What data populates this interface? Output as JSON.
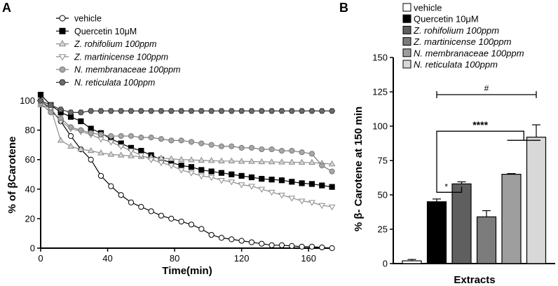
{
  "panels": {
    "a": "A",
    "b": "B"
  },
  "chart_data": [
    {
      "type": "line",
      "xlabel": "Time(min)",
      "ylabel": "% of βCarotene",
      "xlim": [
        0,
        175
      ],
      "ylim": [
        0,
        105
      ],
      "xticks": [
        0,
        40,
        80,
        120,
        160
      ],
      "yticks": [
        0,
        20,
        40,
        60,
        80,
        100
      ],
      "series": [
        {
          "name": "vehicle",
          "marker": "circle-open",
          "color": "#000000",
          "fill": "#ffffff",
          "points": [
            [
              0,
              100
            ],
            [
              6,
              94
            ],
            [
              12,
              86
            ],
            [
              18,
              76
            ],
            [
              24,
              67
            ],
            [
              30,
              60
            ],
            [
              36,
              49
            ],
            [
              42,
              42
            ],
            [
              48,
              36
            ],
            [
              54,
              31
            ],
            [
              60,
              28
            ],
            [
              66,
              25
            ],
            [
              72,
              22
            ],
            [
              78,
              20
            ],
            [
              84,
              18
            ],
            [
              90,
              16
            ],
            [
              96,
              13
            ],
            [
              102,
              9
            ],
            [
              108,
              7
            ],
            [
              114,
              6
            ],
            [
              120,
              5
            ],
            [
              126,
              4
            ],
            [
              132,
              3
            ],
            [
              138,
              2
            ],
            [
              144,
              2
            ],
            [
              150,
              1.5
            ],
            [
              156,
              1
            ],
            [
              162,
              1
            ],
            [
              168,
              0.5
            ],
            [
              174,
              0
            ]
          ]
        },
        {
          "name": "Quercetin 10μM",
          "marker": "square",
          "color": "#000000",
          "fill": "#000000",
          "points": [
            [
              0,
              104
            ],
            [
              6,
              97
            ],
            [
              12,
              92
            ],
            [
              18,
              89
            ],
            [
              24,
              86
            ],
            [
              30,
              81
            ],
            [
              36,
              78
            ],
            [
              42,
              74
            ],
            [
              48,
              71
            ],
            [
              54,
              68
            ],
            [
              60,
              66
            ],
            [
              66,
              63
            ],
            [
              72,
              60
            ],
            [
              78,
              58
            ],
            [
              84,
              56
            ],
            [
              90,
              55
            ],
            [
              96,
              53
            ],
            [
              102,
              52
            ],
            [
              108,
              51
            ],
            [
              114,
              50
            ],
            [
              120,
              49
            ],
            [
              126,
              48
            ],
            [
              132,
              47
            ],
            [
              138,
              46.5
            ],
            [
              144,
              46
            ],
            [
              150,
              45
            ],
            [
              156,
              44
            ],
            [
              162,
              43.5
            ],
            [
              168,
              42.5
            ],
            [
              174,
              41.5
            ]
          ]
        },
        {
          "name": "Z. rohifolium 100ppm",
          "marker": "triangle-up",
          "color": "#8c8c8c",
          "fill": "#d6d6d6",
          "points": [
            [
              0,
              97
            ],
            [
              6,
              95
            ],
            [
              12,
              73
            ],
            [
              18,
              69
            ],
            [
              24,
              67
            ],
            [
              30,
              66
            ],
            [
              36,
              64.5
            ],
            [
              42,
              63.5
            ],
            [
              48,
              63
            ],
            [
              54,
              62.5
            ],
            [
              60,
              62
            ],
            [
              66,
              61.5
            ],
            [
              72,
              61
            ],
            [
              78,
              60.5
            ],
            [
              84,
              60
            ],
            [
              90,
              59.8
            ],
            [
              96,
              59.5
            ],
            [
              102,
              59.3
            ],
            [
              108,
              59
            ],
            [
              114,
              59
            ],
            [
              120,
              58.8
            ],
            [
              126,
              58.7
            ],
            [
              132,
              58.5
            ],
            [
              138,
              58.4
            ],
            [
              144,
              58.3
            ],
            [
              150,
              58.2
            ],
            [
              156,
              58.1
            ],
            [
              162,
              58
            ],
            [
              168,
              57.5
            ],
            [
              174,
              57
            ]
          ]
        },
        {
          "name": "Z. martinicense 100ppm",
          "marker": "triangle-down",
          "color": "#8c8c8c",
          "fill": "#ffffff",
          "points": [
            [
              0,
              100
            ],
            [
              6,
              95
            ],
            [
              12,
              86
            ],
            [
              18,
              81
            ],
            [
              24,
              79
            ],
            [
              30,
              77
            ],
            [
              36,
              74
            ],
            [
              42,
              72
            ],
            [
              48,
              69
            ],
            [
              54,
              66
            ],
            [
              60,
              63
            ],
            [
              66,
              60
            ],
            [
              72,
              58
            ],
            [
              78,
              56
            ],
            [
              84,
              53
            ],
            [
              90,
              51
            ],
            [
              96,
              49
            ],
            [
              102,
              48
            ],
            [
              108,
              46
            ],
            [
              114,
              45
            ],
            [
              120,
              43
            ],
            [
              126,
              42
            ],
            [
              132,
              40
            ],
            [
              138,
              38
            ],
            [
              144,
              36
            ],
            [
              150,
              34
            ],
            [
              156,
              32
            ],
            [
              162,
              31
            ],
            [
              168,
              29
            ],
            [
              174,
              28
            ]
          ]
        },
        {
          "name": "N. membranaceae 100ppm",
          "marker": "circle",
          "color": "#7a7a7a",
          "fill": "#a6a6a6",
          "points": [
            [
              0,
              98
            ],
            [
              6,
              92
            ],
            [
              12,
              88
            ],
            [
              18,
              82
            ],
            [
              24,
              80
            ],
            [
              30,
              78
            ],
            [
              36,
              77
            ],
            [
              42,
              76
            ],
            [
              48,
              76
            ],
            [
              54,
              76
            ],
            [
              60,
              75
            ],
            [
              66,
              75
            ],
            [
              72,
              74
            ],
            [
              78,
              73
            ],
            [
              84,
              73
            ],
            [
              90,
              72
            ],
            [
              96,
              71
            ],
            [
              102,
              70
            ],
            [
              108,
              69
            ],
            [
              114,
              69
            ],
            [
              120,
              68
            ],
            [
              126,
              68
            ],
            [
              132,
              67
            ],
            [
              138,
              67
            ],
            [
              144,
              66
            ],
            [
              150,
              66
            ],
            [
              156,
              65
            ],
            [
              162,
              64
            ],
            [
              168,
              56
            ],
            [
              174,
              52
            ]
          ]
        },
        {
          "name": "N. reticulata 100ppm",
          "marker": "hexagon",
          "color": "#333333",
          "fill": "#6b6b6b",
          "points": [
            [
              0,
              100
            ],
            [
              6,
              97
            ],
            [
              12,
              94
            ],
            [
              18,
              92
            ],
            [
              24,
              92
            ],
            [
              30,
              93
            ],
            [
              36,
              93
            ],
            [
              42,
              93
            ],
            [
              48,
              93
            ],
            [
              54,
              93
            ],
            [
              60,
              93
            ],
            [
              66,
              93
            ],
            [
              72,
              93
            ],
            [
              78,
              93
            ],
            [
              84,
              93
            ],
            [
              90,
              93
            ],
            [
              96,
              93
            ],
            [
              102,
              93
            ],
            [
              108,
              93
            ],
            [
              114,
              93
            ],
            [
              120,
              93
            ],
            [
              126,
              93
            ],
            [
              132,
              93
            ],
            [
              138,
              93
            ],
            [
              144,
              93
            ],
            [
              150,
              93
            ],
            [
              156,
              93
            ],
            [
              162,
              93
            ],
            [
              168,
              93
            ],
            [
              174,
              93
            ]
          ]
        }
      ]
    },
    {
      "type": "bar",
      "xlabel": "Extracts",
      "ylabel": "% β- Carotene at 150 min",
      "ylim": [
        0,
        150
      ],
      "yticks": [
        0,
        25,
        50,
        75,
        100,
        125,
        150
      ],
      "categories": [
        "vehicle",
        "Quercetin 10μM",
        "Z. rohifolium 100ppm",
        "Z. martinicense 100ppm",
        "N. membranaceae 100ppm",
        "N. reticulata 100ppm"
      ],
      "italic": [
        false,
        false,
        true,
        true,
        true,
        true
      ],
      "values": [
        2,
        45,
        58,
        34,
        65,
        92
      ],
      "errors": [
        1,
        2,
        1.5,
        4.5,
        0.5,
        9
      ],
      "colors": [
        "#ffffff",
        "#000000",
        "#5f5f5f",
        "#7c7c7c",
        "#9e9e9e",
        "#d8d8d8"
      ],
      "annotations": [
        {
          "text": "*",
          "from": 1,
          "to": 2,
          "y": 58
        },
        {
          "text": "****",
          "from": 1,
          "to": 4.5,
          "y": 105
        },
        {
          "text": "#",
          "from": 1,
          "to": 5,
          "y": 125
        }
      ]
    }
  ]
}
